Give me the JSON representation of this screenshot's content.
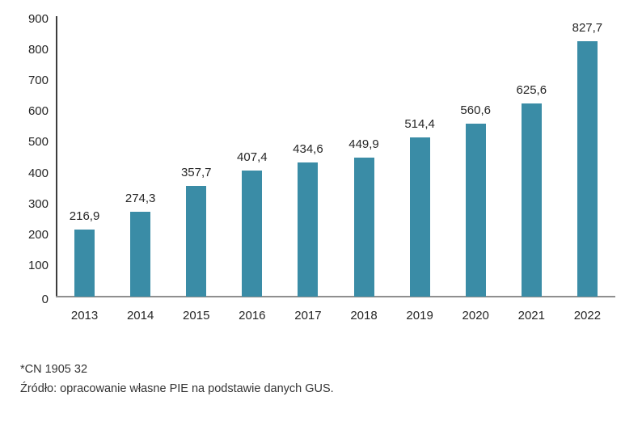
{
  "chart_data": {
    "type": "bar",
    "categories": [
      "2013",
      "2014",
      "2015",
      "2016",
      "2017",
      "2018",
      "2019",
      "2020",
      "2021",
      "2022"
    ],
    "values": [
      216.9,
      274.3,
      357.7,
      407.4,
      434.6,
      449.9,
      514.4,
      560.6,
      625.6,
      827.7
    ],
    "value_labels": [
      "216,9",
      "274,3",
      "357,7",
      "407,4",
      "434,6",
      "449,9",
      "514,4",
      "560,6",
      "625,6",
      "827,7"
    ],
    "title": "",
    "xlabel": "",
    "ylabel": "",
    "ylim": [
      0,
      900
    ],
    "yticks": [
      0,
      100,
      200,
      300,
      400,
      500,
      600,
      700,
      800,
      900
    ],
    "grid": false,
    "legend_position": "none",
    "bar_color": "#3a8ca6"
  },
  "colors": {
    "bar": "#3a8ca6",
    "text": "#262626",
    "y_axis_line": "#3d3d3d",
    "x_axis_line": "#8f8f8f"
  },
  "footnotes": {
    "line1": "*CN 1905 32",
    "line2": "Źródło: opracowanie własne PIE na podstawie danych GUS."
  }
}
